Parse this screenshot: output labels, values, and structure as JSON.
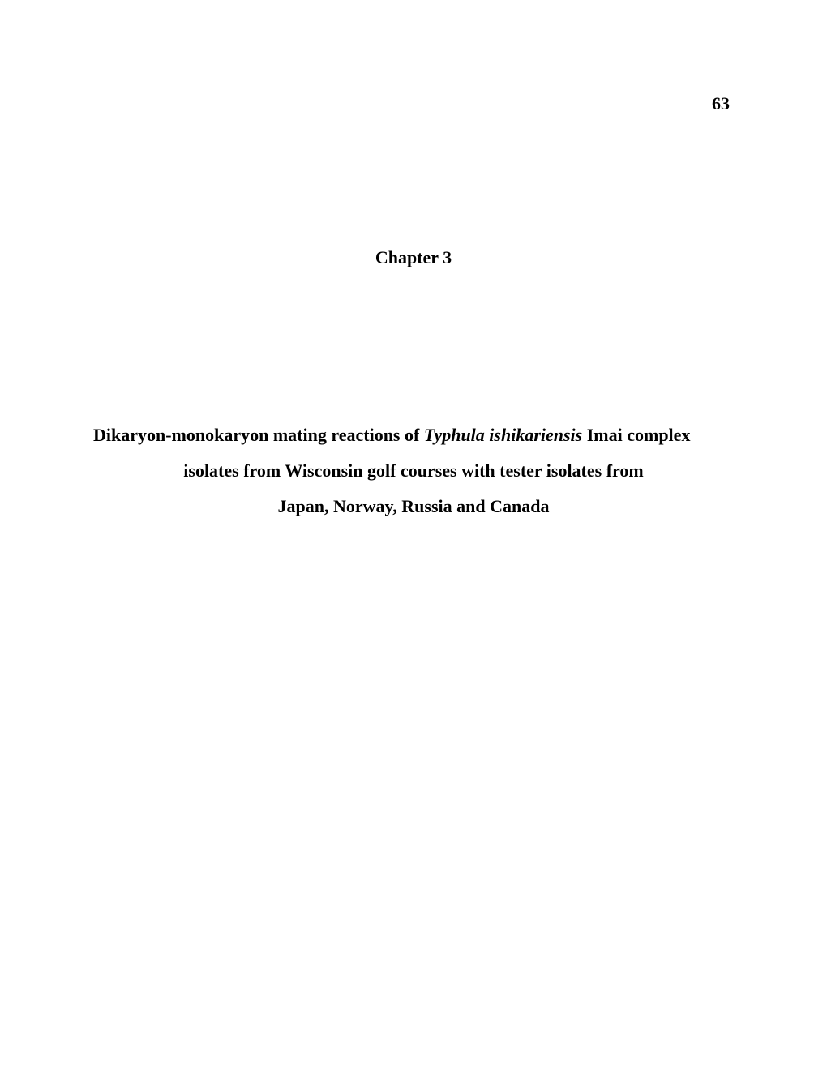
{
  "page_number": "63",
  "chapter_heading": "Chapter 3",
  "title": {
    "line1_pre": "Dikaryon-monokaryon mating reactions of ",
    "line1_italic": "Typhula  ishikariensis",
    "line1_post": " Imai complex",
    "line2": "isolates from Wisconsin golf courses with tester isolates from",
    "line3": "Japan, Norway, Russia and Canada"
  }
}
